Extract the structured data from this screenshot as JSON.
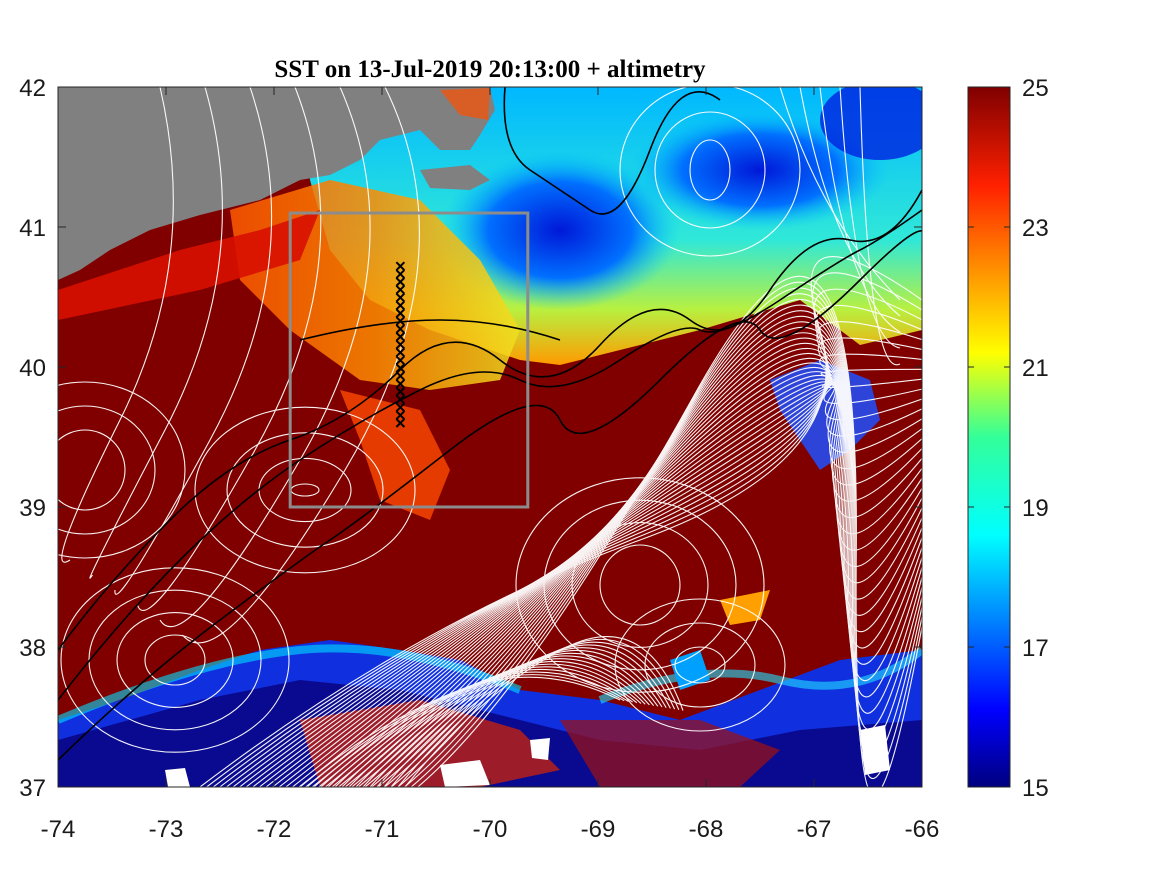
{
  "chart_data": {
    "type": "heatmap",
    "title": "SST on 13-Jul-2019 20:13:00 + altimetry",
    "xlabel": "",
    "ylabel": "",
    "xlim": [
      -74,
      -66
    ],
    "ylim": [
      37,
      42
    ],
    "xticks": [
      -74,
      -73,
      -72,
      -71,
      -70,
      -69,
      -68,
      -67,
      -66
    ],
    "xtick_labels": [
      "-74",
      "-73",
      "-72",
      "-71",
      "-70",
      "-69",
      "-68",
      "-67",
      "-66"
    ],
    "yticks": [
      37,
      38,
      39,
      40,
      41,
      42
    ],
    "ytick_labels": [
      "37",
      "38",
      "39",
      "40",
      "41",
      "42"
    ],
    "colorbar": {
      "range": [
        15,
        25
      ],
      "ticks": [
        15,
        17,
        19,
        21,
        23,
        25
      ],
      "tick_labels": [
        "15",
        "17",
        "19",
        "21",
        "23",
        "25"
      ],
      "colormap": "jet"
    },
    "box": {
      "lon": [
        -71.85,
        -69.65
      ],
      "lat": [
        39.0,
        41.1
      ],
      "color": "#8c8c8c"
    },
    "stations": {
      "lon": -70.83,
      "lat_start": 39.6,
      "lat_end": 40.72,
      "count": 21,
      "marker": "x"
    },
    "land_color": "#808080",
    "grid": false
  }
}
